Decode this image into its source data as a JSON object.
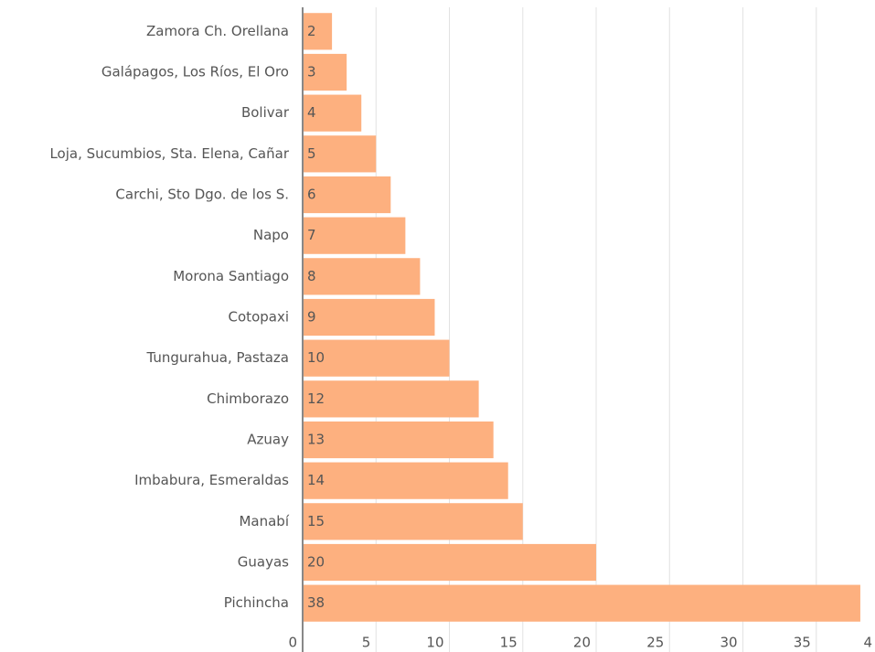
{
  "chart_data": {
    "type": "bar",
    "orientation": "horizontal",
    "categories": [
      "Zamora Ch. Orellana",
      "Galápagos, Los Ríos, El Oro",
      "Bolivar",
      "Loja, Sucumbios, Sta. Elena, Cañar",
      "Carchi, Sto Dgo. de los S.",
      "Napo",
      "Morona Santiago",
      "Cotopaxi",
      "Tungurahua, Pastaza",
      "Chimborazo",
      "Azuay",
      "Imbabura, Esmeraldas",
      "Manabí",
      "Guayas",
      "Pichincha"
    ],
    "values": [
      2,
      3,
      4,
      5,
      6,
      7,
      8,
      9,
      10,
      12,
      13,
      14,
      15,
      20,
      38
    ],
    "color": "#fdb07f",
    "xlim": [
      0,
      39
    ],
    "xticks": [
      0,
      5,
      10,
      15,
      20,
      25,
      30,
      35,
      {
        "value": 40,
        "label": "4"
      }
    ],
    "grid": true
  }
}
